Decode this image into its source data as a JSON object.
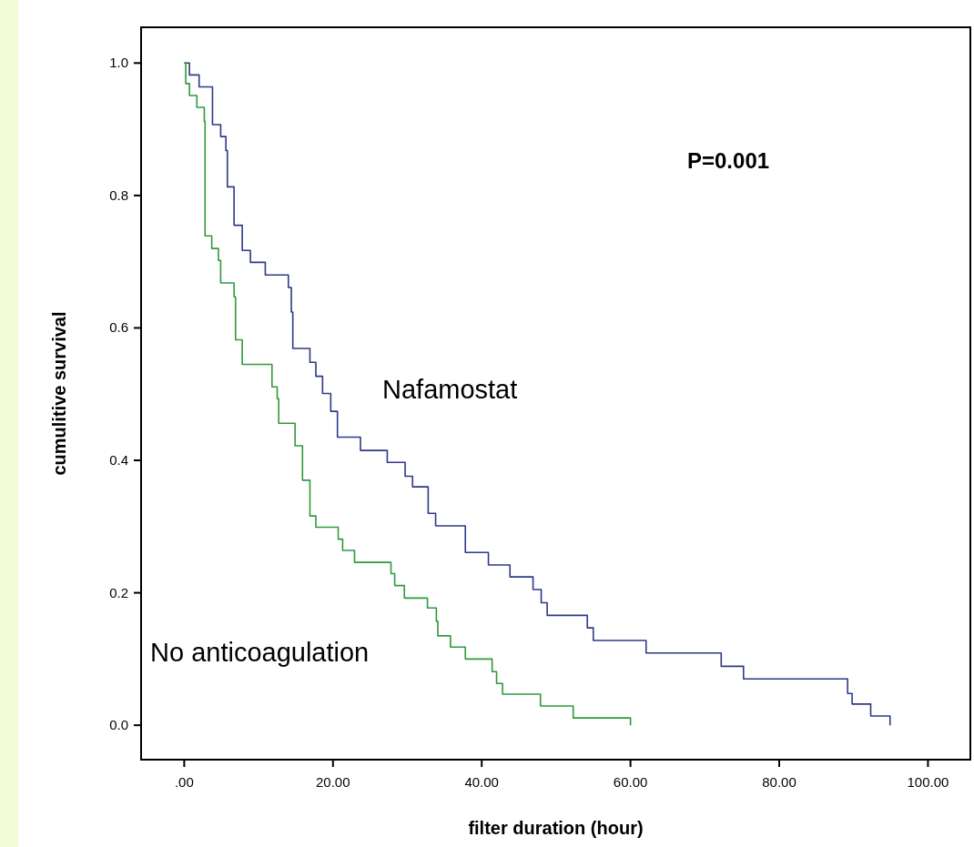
{
  "chart_data": {
    "type": "step",
    "xlabel": "filter duration (hour)",
    "ylabel": "cumulitive survival",
    "annotations": [
      "P=0.001"
    ],
    "xlim": [
      -5.8,
      105.7
    ],
    "ylim": [
      -0.052,
      1.054
    ],
    "xticks": [
      {
        "value": 0,
        "label": ".00"
      },
      {
        "value": 20,
        "label": "20.00"
      },
      {
        "value": 40,
        "label": "40.00"
      },
      {
        "value": 60,
        "label": "60.00"
      },
      {
        "value": 80,
        "label": "80.00"
      },
      {
        "value": 100,
        "label": "100.00"
      }
    ],
    "yticks": [
      {
        "value": 0,
        "label": "0.0"
      },
      {
        "value": 0.2,
        "label": "0.2"
      },
      {
        "value": 0.4,
        "label": "0.4"
      },
      {
        "value": 0.6,
        "label": "0.6"
      },
      {
        "value": 0.8,
        "label": "0.8"
      },
      {
        "value": 1,
        "label": "1.0"
      }
    ],
    "grid": false,
    "marker": "none",
    "line_style": "solid",
    "series": [
      {
        "name": "Nafamostat",
        "color": "#2e3a86",
        "x": [
          0,
          0.7,
          2.0,
          3.8,
          4.9,
          5.6,
          5.8,
          6.7,
          7.8,
          8.9,
          10.9,
          14.0,
          14.4,
          14.6,
          16.9,
          17.7,
          18.6,
          19.7,
          20.6,
          23.7,
          27.3,
          29.7,
          30.7,
          32.8,
          33.8,
          37.8,
          40.9,
          43.8,
          46.9,
          48.0,
          48.8,
          54.2,
          55.0,
          62.1,
          72.2,
          75.2,
          89.2,
          89.8,
          92.3,
          94.9
        ],
        "values": [
          1.0,
          0.982,
          0.964,
          0.907,
          0.889,
          0.868,
          0.813,
          0.755,
          0.717,
          0.699,
          0.68,
          0.661,
          0.624,
          0.569,
          0.548,
          0.527,
          0.501,
          0.474,
          0.435,
          0.415,
          0.397,
          0.376,
          0.36,
          0.32,
          0.301,
          0.261,
          0.242,
          0.224,
          0.205,
          0.185,
          0.166,
          0.147,
          0.128,
          0.109,
          0.089,
          0.07,
          0.048,
          0.032,
          0.014,
          0.0
        ]
      },
      {
        "name": "No anticoagulation",
        "color": "#2f9a3c",
        "x": [
          0,
          0.2,
          0.7,
          1.7,
          2.7,
          2.8,
          3.7,
          4.6,
          4.9,
          6.7,
          6.9,
          7.8,
          11.8,
          12.5,
          12.7,
          14.9,
          15.9,
          16.9,
          17.7,
          20.7,
          21.3,
          22.9,
          27.8,
          28.3,
          29.6,
          32.7,
          33.9,
          34.1,
          35.8,
          37.8,
          41.4,
          42.0,
          42.8,
          47.9,
          52.3,
          60.0
        ],
        "values": [
          1.0,
          0.969,
          0.951,
          0.933,
          0.912,
          0.739,
          0.72,
          0.702,
          0.668,
          0.647,
          0.582,
          0.545,
          0.511,
          0.493,
          0.456,
          0.422,
          0.37,
          0.316,
          0.299,
          0.281,
          0.264,
          0.246,
          0.229,
          0.211,
          0.192,
          0.177,
          0.157,
          0.135,
          0.118,
          0.1,
          0.081,
          0.063,
          0.047,
          0.029,
          0.011,
          0.0
        ]
      }
    ]
  }
}
